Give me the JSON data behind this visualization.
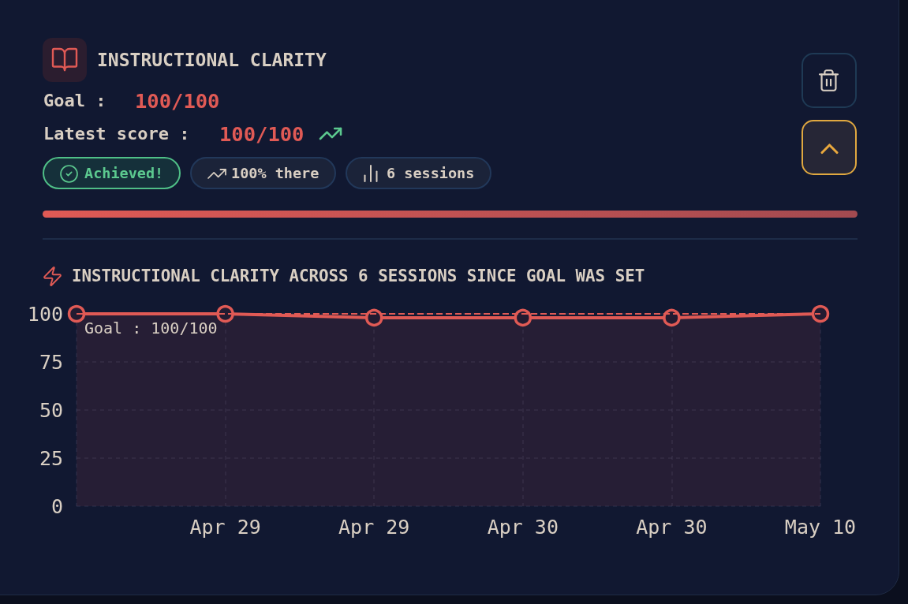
{
  "chart_data": {
    "type": "area",
    "title": "INSTRUCTIONAL CLARITY",
    "subtitle": "INSTRUCTIONAL CLARITY ACROSS 6 SESSIONS SINCE GOAL WAS SET",
    "annotations": [
      "Goal :",
      "100/100",
      "Latest score :",
      "100/100",
      "Achieved!",
      "100% there",
      "6 sessions"
    ],
    "categories": [
      null,
      "Apr 29",
      "Apr 29",
      "Apr 30",
      "Apr 30",
      "May 10"
    ],
    "series": [
      {
        "color": "#e05a55",
        "values": [
          100,
          100,
          98,
          98,
          98,
          100
        ]
      }
    ],
    "ylim": [
      0,
      100
    ],
    "yticks": [
      0,
      25,
      50,
      75,
      100
    ],
    "ref_lines": [
      {
        "axis": "y",
        "value": 100,
        "label": "Goal : 100/100",
        "color": "#e05a55",
        "line_style": "dashed"
      }
    ],
    "grid": true,
    "marker": "circle",
    "line_style": "solid"
  }
}
